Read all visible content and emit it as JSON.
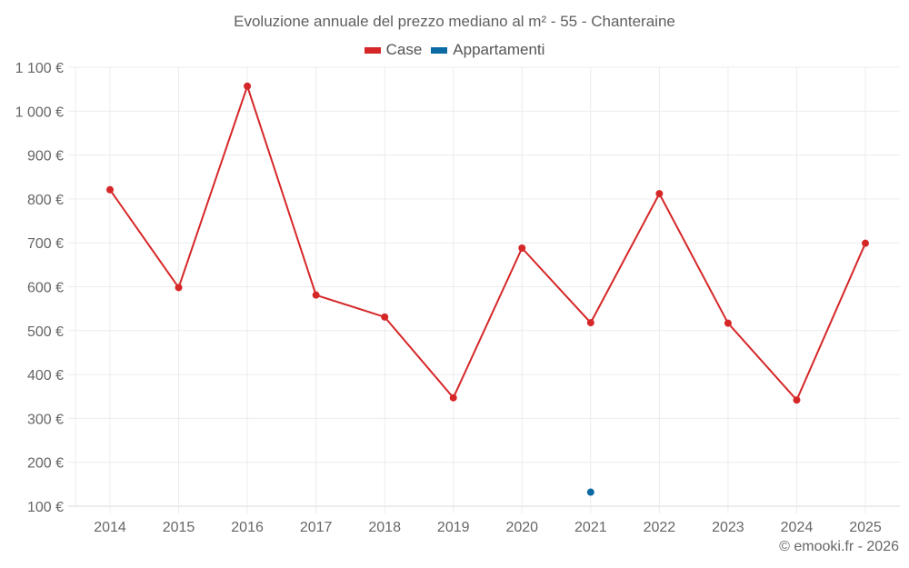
{
  "title": "Evoluzione annuale del prezzo mediano al m² - 55 - Chanteraine",
  "legend": [
    {
      "label": "Case",
      "color": "#d62728"
    },
    {
      "label": "Appartamenti",
      "color": "#0b6aa2"
    }
  ],
  "credit": "© emooki.fr - 2026",
  "chart_data": {
    "type": "line",
    "title": "Evoluzione annuale del prezzo mediano al m² - 55 - Chanteraine",
    "xlabel": "",
    "ylabel": "",
    "categories": [
      "2014",
      "2015",
      "2016",
      "2017",
      "2018",
      "2019",
      "2020",
      "2021",
      "2022",
      "2023",
      "2024",
      "2025"
    ],
    "series": [
      {
        "name": "Case",
        "color": "#d62728",
        "values": [
          821,
          598,
          1057,
          581,
          531,
          347,
          688,
          518,
          812,
          517,
          342,
          699
        ]
      },
      {
        "name": "Appartamenti",
        "color": "#0b6aa2",
        "values": [
          null,
          null,
          null,
          null,
          null,
          null,
          null,
          132,
          null,
          null,
          null,
          null
        ]
      }
    ],
    "y_ticks": [
      100,
      200,
      300,
      400,
      500,
      600,
      700,
      800,
      900,
      1000,
      1100
    ],
    "y_tick_labels": [
      "100 €",
      "200 €",
      "300 €",
      "400 €",
      "500 €",
      "600 €",
      "700 €",
      "800 €",
      "900 €",
      "1 000 €",
      "1 100 €"
    ],
    "ylim": [
      100,
      1100
    ],
    "grid": true,
    "legend_position": "top"
  }
}
